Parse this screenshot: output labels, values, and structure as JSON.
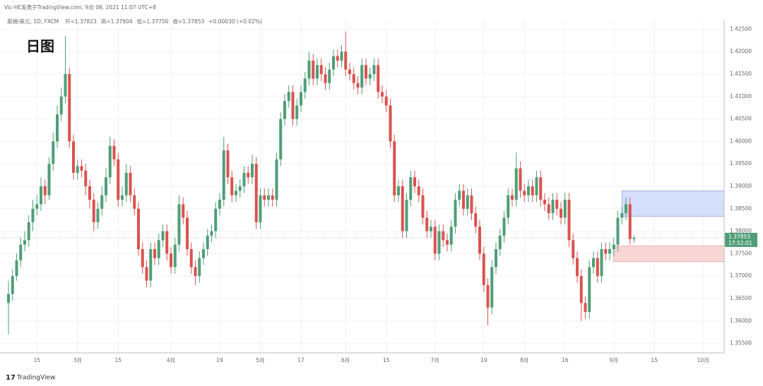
{
  "header": {
    "byline": "Vic-HE发表于TradingView.com, 9月 08, 2021 11:07 UTC+8",
    "symbol": "英镑/美元, 1D, FXCM",
    "stats": [
      "开=1.37823",
      "高=1.37904",
      "低=1.37750",
      "收=1.37853",
      "+0.00030 (+0.02%)"
    ],
    "logo": "TradingView"
  },
  "chart_data": {
    "type": "candlestick",
    "title": "日图",
    "up_color": "#4f9e78",
    "down_color": "#d9534f",
    "grid": true,
    "ylim": [
      1.3529,
      1.4271
    ],
    "yticks": [
      {
        "value": 1.355,
        "label": "1.35500"
      },
      {
        "value": 1.36,
        "label": "1.36000"
      },
      {
        "value": 1.365,
        "label": "1.36500"
      },
      {
        "value": 1.37,
        "label": "1.37000"
      },
      {
        "value": 1.375,
        "label": "1.37500"
      },
      {
        "value": 1.38,
        "label": "1.38000"
      },
      {
        "value": 1.385,
        "label": "1.38500"
      },
      {
        "value": 1.39,
        "label": "1.39000"
      },
      {
        "value": 1.395,
        "label": "1.39500"
      },
      {
        "value": 1.4,
        "label": "1.40000"
      },
      {
        "value": 1.405,
        "label": "1.40500"
      },
      {
        "value": 1.41,
        "label": "1.41000"
      },
      {
        "value": 1.415,
        "label": "1.41500"
      },
      {
        "value": 1.42,
        "label": "1.42000"
      },
      {
        "value": 1.425,
        "label": "1.42500"
      }
    ],
    "last_price_label": "1.37853",
    "countdown": "17:52:01",
    "zones": [
      {
        "y": [
          1.3833,
          1.389
        ],
        "start": 151,
        "color": "#d5defa"
      },
      {
        "y": [
          1.3732,
          1.3767
        ],
        "start": 149,
        "color": "#f9d6d6"
      }
    ],
    "categories": [
      null,
      null,
      null,
      null,
      null,
      null,
      null,
      "15",
      null,
      null,
      null,
      null,
      null,
      null,
      null,
      null,
      null,
      "3月",
      null,
      null,
      null,
      null,
      null,
      null,
      null,
      null,
      null,
      "15",
      null,
      null,
      null,
      null,
      null,
      null,
      null,
      null,
      null,
      null,
      null,
      null,
      "4月",
      null,
      null,
      null,
      null,
      null,
      null,
      null,
      null,
      null,
      null,
      null,
      "19",
      null,
      null,
      null,
      null,
      null,
      null,
      null,
      null,
      null,
      "5月",
      null,
      null,
      null,
      null,
      null,
      null,
      null,
      null,
      null,
      "17",
      null,
      null,
      null,
      null,
      null,
      null,
      null,
      null,
      null,
      null,
      "6月",
      null,
      null,
      null,
      null,
      null,
      null,
      null,
      null,
      null,
      "15",
      null,
      null,
      null,
      null,
      null,
      null,
      null,
      null,
      null,
      null,
      null,
      "7月",
      null,
      null,
      null,
      null,
      null,
      null,
      null,
      null,
      null,
      null,
      null,
      "19",
      null,
      null,
      null,
      null,
      null,
      null,
      null,
      null,
      null,
      "8月",
      null,
      null,
      null,
      null,
      null,
      null,
      null,
      null,
      null,
      "16",
      null,
      null,
      null,
      null,
      null,
      null,
      null,
      null,
      null,
      null,
      null,
      "9月",
      null,
      null,
      null,
      null,
      null,
      null,
      null,
      null,
      null,
      "15",
      null,
      null,
      null,
      null,
      null,
      null,
      null,
      null,
      null,
      null,
      null,
      "10月",
      null,
      null,
      null,
      null
    ],
    "ohlc": [
      [
        1.364,
        1.369,
        1.357,
        1.366
      ],
      [
        1.366,
        1.3715,
        1.3645,
        1.37
      ],
      [
        1.37,
        1.375,
        1.369,
        1.3735
      ],
      [
        1.3735,
        1.3785,
        1.372,
        1.377
      ],
      [
        1.377,
        1.38,
        1.3755,
        1.378
      ],
      [
        1.378,
        1.3835,
        1.3765,
        1.382
      ],
      [
        1.382,
        1.387,
        1.38,
        1.385
      ],
      [
        1.385,
        1.388,
        1.3835,
        1.386
      ],
      [
        1.386,
        1.392,
        1.3845,
        1.39
      ],
      [
        1.39,
        1.3915,
        1.386,
        1.388
      ],
      [
        1.388,
        1.3965,
        1.387,
        1.395
      ],
      [
        1.395,
        1.402,
        1.3935,
        1.4
      ],
      [
        1.4,
        1.408,
        1.3985,
        1.406
      ],
      [
        1.406,
        1.412,
        1.4045,
        1.41
      ],
      [
        1.41,
        1.4235,
        1.4085,
        1.415
      ],
      [
        1.415,
        1.4165,
        1.3985,
        1.4
      ],
      [
        1.4,
        1.4015,
        1.3915,
        1.393
      ],
      [
        1.393,
        1.396,
        1.3915,
        1.3945
      ],
      [
        1.3945,
        1.396,
        1.392,
        1.3935
      ],
      [
        1.3935,
        1.395,
        1.388,
        1.39
      ],
      [
        1.39,
        1.3915,
        1.385,
        1.387
      ],
      [
        1.387,
        1.3885,
        1.38,
        1.382
      ],
      [
        1.382,
        1.3865,
        1.3805,
        1.385
      ],
      [
        1.385,
        1.39,
        1.3835,
        1.388
      ],
      [
        1.388,
        1.394,
        1.3865,
        1.392
      ],
      [
        1.392,
        1.401,
        1.3905,
        1.399
      ],
      [
        1.399,
        1.4005,
        1.3945,
        1.396
      ],
      [
        1.396,
        1.3975,
        1.3855,
        1.387
      ],
      [
        1.387,
        1.39,
        1.3855,
        1.388
      ],
      [
        1.388,
        1.395,
        1.3865,
        1.393
      ],
      [
        1.393,
        1.3945,
        1.3865,
        1.388
      ],
      [
        1.388,
        1.3895,
        1.3835,
        1.385
      ],
      [
        1.385,
        1.3865,
        1.3745,
        1.376
      ],
      [
        1.376,
        1.3775,
        1.3705,
        1.372
      ],
      [
        1.372,
        1.3735,
        1.3675,
        1.369
      ],
      [
        1.369,
        1.3775,
        1.3675,
        1.376
      ],
      [
        1.376,
        1.3775,
        1.3725,
        1.374
      ],
      [
        1.374,
        1.3795,
        1.3725,
        1.378
      ],
      [
        1.378,
        1.3815,
        1.3765,
        1.38
      ],
      [
        1.38,
        1.3815,
        1.3735,
        1.375
      ],
      [
        1.375,
        1.3765,
        1.3705,
        1.372
      ],
      [
        1.372,
        1.3785,
        1.3705,
        1.377
      ],
      [
        1.377,
        1.388,
        1.3755,
        1.386
      ],
      [
        1.386,
        1.3875,
        1.3815,
        1.383
      ],
      [
        1.383,
        1.3845,
        1.3745,
        1.376
      ],
      [
        1.376,
        1.3775,
        1.3705,
        1.372
      ],
      [
        1.372,
        1.3735,
        1.368,
        1.37
      ],
      [
        1.37,
        1.3755,
        1.3685,
        1.374
      ],
      [
        1.374,
        1.3775,
        1.3725,
        1.376
      ],
      [
        1.376,
        1.3805,
        1.3745,
        1.379
      ],
      [
        1.379,
        1.3815,
        1.3775,
        1.38
      ],
      [
        1.38,
        1.3865,
        1.3785,
        1.385
      ],
      [
        1.385,
        1.3885,
        1.3835,
        1.387
      ],
      [
        1.387,
        1.401,
        1.3855,
        1.398
      ],
      [
        1.398,
        1.3995,
        1.3905,
        1.392
      ],
      [
        1.392,
        1.3935,
        1.3865,
        1.388
      ],
      [
        1.388,
        1.3905,
        1.3865,
        1.389
      ],
      [
        1.389,
        1.3915,
        1.3875,
        1.39
      ],
      [
        1.39,
        1.3945,
        1.3885,
        1.393
      ],
      [
        1.393,
        1.3945,
        1.3905,
        1.392
      ],
      [
        1.392,
        1.397,
        1.3905,
        1.395
      ],
      [
        1.395,
        1.3965,
        1.3805,
        1.382
      ],
      [
        1.382,
        1.3895,
        1.3805,
        1.388
      ],
      [
        1.388,
        1.3895,
        1.3855,
        1.387
      ],
      [
        1.387,
        1.3895,
        1.3855,
        1.388
      ],
      [
        1.388,
        1.3895,
        1.3855,
        1.387
      ],
      [
        1.387,
        1.3975,
        1.3855,
        1.396
      ],
      [
        1.396,
        1.4065,
        1.3945,
        1.405
      ],
      [
        1.405,
        1.4105,
        1.4035,
        1.409
      ],
      [
        1.409,
        1.4125,
        1.4075,
        1.411
      ],
      [
        1.411,
        1.4125,
        1.4035,
        1.405
      ],
      [
        1.405,
        1.4095,
        1.4035,
        1.408
      ],
      [
        1.408,
        1.4125,
        1.4065,
        1.411
      ],
      [
        1.411,
        1.4155,
        1.4095,
        1.414
      ],
      [
        1.414,
        1.42,
        1.4125,
        1.418
      ],
      [
        1.418,
        1.4195,
        1.4125,
        1.414
      ],
      [
        1.414,
        1.4185,
        1.4125,
        1.417
      ],
      [
        1.417,
        1.4185,
        1.4135,
        1.415
      ],
      [
        1.415,
        1.4165,
        1.4115,
        1.413
      ],
      [
        1.413,
        1.4175,
        1.4115,
        1.416
      ],
      [
        1.416,
        1.4205,
        1.4145,
        1.419
      ],
      [
        1.419,
        1.4205,
        1.4165,
        1.418
      ],
      [
        1.418,
        1.4215,
        1.4165,
        1.42
      ],
      [
        1.42,
        1.4245,
        1.4145,
        1.416
      ],
      [
        1.416,
        1.4175,
        1.4135,
        1.415
      ],
      [
        1.415,
        1.4165,
        1.4115,
        1.413
      ],
      [
        1.413,
        1.4145,
        1.4105,
        1.412
      ],
      [
        1.412,
        1.4185,
        1.4105,
        1.417
      ],
      [
        1.417,
        1.4185,
        1.4125,
        1.414
      ],
      [
        1.414,
        1.4165,
        1.4125,
        1.415
      ],
      [
        1.415,
        1.4185,
        1.4135,
        1.417
      ],
      [
        1.417,
        1.4185,
        1.4095,
        1.411
      ],
      [
        1.411,
        1.4125,
        1.4085,
        1.41
      ],
      [
        1.41,
        1.4115,
        1.4065,
        1.408
      ],
      [
        1.408,
        1.4095,
        1.3985,
        1.4
      ],
      [
        1.4,
        1.4015,
        1.3865,
        1.388
      ],
      [
        1.388,
        1.3915,
        1.3865,
        1.39
      ],
      [
        1.39,
        1.3915,
        1.3785,
        1.38
      ],
      [
        1.38,
        1.3885,
        1.3785,
        1.387
      ],
      [
        1.387,
        1.3935,
        1.3855,
        1.392
      ],
      [
        1.392,
        1.3935,
        1.3885,
        1.39
      ],
      [
        1.39,
        1.3915,
        1.3865,
        1.388
      ],
      [
        1.388,
        1.3895,
        1.3815,
        1.383
      ],
      [
        1.383,
        1.3845,
        1.3785,
        1.38
      ],
      [
        1.38,
        1.3825,
        1.3785,
        1.381
      ],
      [
        1.381,
        1.3825,
        1.3735,
        1.375
      ],
      [
        1.375,
        1.3815,
        1.3735,
        1.38
      ],
      [
        1.38,
        1.3815,
        1.3765,
        1.378
      ],
      [
        1.378,
        1.3795,
        1.3755,
        1.377
      ],
      [
        1.377,
        1.3825,
        1.3755,
        1.381
      ],
      [
        1.381,
        1.3885,
        1.3795,
        1.387
      ],
      [
        1.387,
        1.3905,
        1.3855,
        1.389
      ],
      [
        1.389,
        1.3905,
        1.3835,
        1.385
      ],
      [
        1.385,
        1.3895,
        1.3835,
        1.388
      ],
      [
        1.388,
        1.3895,
        1.3825,
        1.384
      ],
      [
        1.384,
        1.3855,
        1.3795,
        1.381
      ],
      [
        1.381,
        1.3825,
        1.3735,
        1.375
      ],
      [
        1.375,
        1.3765,
        1.3665,
        1.368
      ],
      [
        1.368,
        1.3695,
        1.359,
        1.363
      ],
      [
        1.363,
        1.3735,
        1.3615,
        1.372
      ],
      [
        1.372,
        1.3775,
        1.3705,
        1.376
      ],
      [
        1.376,
        1.3805,
        1.3745,
        1.379
      ],
      [
        1.379,
        1.3845,
        1.3775,
        1.383
      ],
      [
        1.383,
        1.3895,
        1.3815,
        1.388
      ],
      [
        1.388,
        1.3895,
        1.3855,
        1.387
      ],
      [
        1.387,
        1.3975,
        1.3855,
        1.394
      ],
      [
        1.394,
        1.3955,
        1.3875,
        1.389
      ],
      [
        1.389,
        1.3905,
        1.3865,
        1.388
      ],
      [
        1.388,
        1.3915,
        1.3865,
        1.39
      ],
      [
        1.39,
        1.3915,
        1.3865,
        1.388
      ],
      [
        1.388,
        1.3935,
        1.3865,
        1.392
      ],
      [
        1.392,
        1.3935,
        1.3855,
        1.387
      ],
      [
        1.387,
        1.3885,
        1.3845,
        1.386
      ],
      [
        1.386,
        1.3875,
        1.3825,
        1.384
      ],
      [
        1.384,
        1.3885,
        1.3825,
        1.387
      ],
      [
        1.387,
        1.3885,
        1.3835,
        1.385
      ],
      [
        1.385,
        1.3865,
        1.3815,
        1.383
      ],
      [
        1.383,
        1.3885,
        1.3815,
        1.387
      ],
      [
        1.387,
        1.3885,
        1.3765,
        1.378
      ],
      [
        1.378,
        1.3795,
        1.3725,
        1.374
      ],
      [
        1.374,
        1.3755,
        1.3685,
        1.37
      ],
      [
        1.37,
        1.3715,
        1.36,
        1.364
      ],
      [
        1.364,
        1.3655,
        1.3605,
        1.362
      ],
      [
        1.362,
        1.3735,
        1.3605,
        1.372
      ],
      [
        1.372,
        1.3755,
        1.3705,
        1.374
      ],
      [
        1.374,
        1.3755,
        1.3685,
        1.37
      ],
      [
        1.37,
        1.3775,
        1.3685,
        1.376
      ],
      [
        1.376,
        1.3775,
        1.3735,
        1.375
      ],
      [
        1.375,
        1.3775,
        1.3735,
        1.376
      ],
      [
        1.376,
        1.3785,
        1.3745,
        1.377
      ],
      [
        1.377,
        1.3845,
        1.3755,
        1.383
      ],
      [
        1.383,
        1.3855,
        1.3815,
        1.384
      ],
      [
        1.384,
        1.3875,
        1.3825,
        1.386
      ],
      [
        1.386,
        1.3875,
        1.377,
        1.37823
      ],
      [
        1.37823,
        1.37904,
        1.3775,
        1.37853
      ],
      null,
      null,
      null,
      null,
      null,
      null,
      null,
      null,
      null,
      null,
      null,
      null,
      null,
      null,
      null,
      null,
      null,
      null,
      null,
      null,
      null
    ]
  }
}
